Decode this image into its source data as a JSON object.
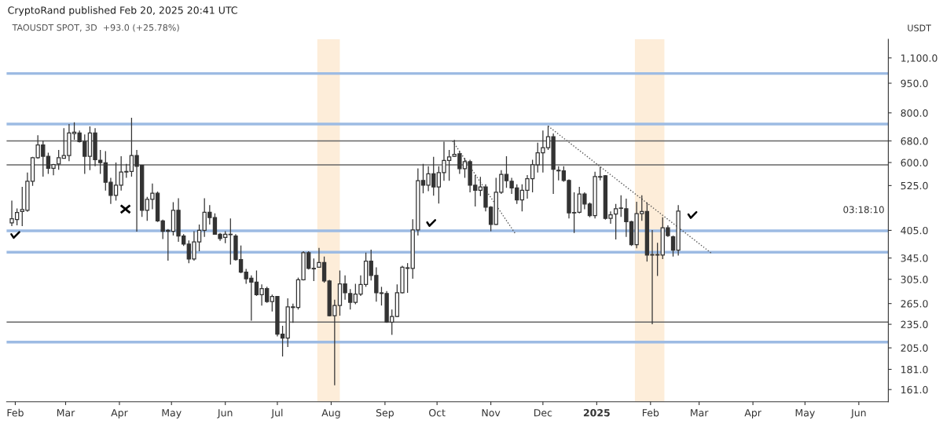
{
  "chart_data": {
    "type": "candlestick",
    "title": "CryptoRand published Feb 20, 2025 20:41 UTC",
    "subtitle": "TAOUSDT SPOT, 3D  +93.0 (+25.78%)",
    "ylabel": "USDT",
    "annotations": [
      "03:18:10"
    ],
    "color": "#333333",
    "log": true,
    "grid": false,
    "x": [
      "2024-01-30",
      "2024-02-02",
      "2024-02-05",
      "2024-02-08",
      "2024-02-11",
      "2024-02-14",
      "2024-02-17",
      "2024-02-20",
      "2024-02-23",
      "2024-02-26",
      "2024-02-29",
      "2024-03-03",
      "2024-03-06",
      "2024-03-09",
      "2024-03-12",
      "2024-03-15",
      "2024-03-18",
      "2024-03-21",
      "2024-03-24",
      "2024-03-27",
      "2024-03-30",
      "2024-04-02",
      "2024-04-05",
      "2024-04-08",
      "2024-04-11",
      "2024-04-14",
      "2024-04-17",
      "2024-04-20",
      "2024-04-23",
      "2024-04-26",
      "2024-04-29",
      "2024-05-02",
      "2024-05-05",
      "2024-05-08",
      "2024-05-11",
      "2024-05-14",
      "2024-05-17",
      "2024-05-20",
      "2024-05-23",
      "2024-05-26",
      "2024-05-29",
      "2024-06-01",
      "2024-06-04",
      "2024-06-07",
      "2024-06-10",
      "2024-06-13",
      "2024-06-16",
      "2024-06-19",
      "2024-06-22",
      "2024-06-25",
      "2024-06-28",
      "2024-07-01",
      "2024-07-04",
      "2024-07-07",
      "2024-07-10",
      "2024-07-13",
      "2024-07-16",
      "2024-07-19",
      "2024-07-22",
      "2024-07-25",
      "2024-07-28",
      "2024-07-31",
      "2024-08-03",
      "2024-08-06",
      "2024-08-09",
      "2024-08-12",
      "2024-08-15",
      "2024-08-18",
      "2024-08-21",
      "2024-08-24",
      "2024-08-27",
      "2024-08-30",
      "2024-09-02",
      "2024-09-05",
      "2024-09-08",
      "2024-09-11",
      "2024-09-14",
      "2024-09-17",
      "2024-09-20",
      "2024-09-23",
      "2024-09-26",
      "2024-09-29",
      "2024-10-02",
      "2024-10-05",
      "2024-10-08",
      "2024-10-11",
      "2024-10-14",
      "2024-10-17",
      "2024-10-20",
      "2024-10-23",
      "2024-10-26",
      "2024-10-29",
      "2024-11-01",
      "2024-11-04",
      "2024-11-07",
      "2024-11-10",
      "2024-11-13",
      "2024-11-16",
      "2024-11-19",
      "2024-11-22",
      "2024-11-25",
      "2024-11-28",
      "2024-12-01",
      "2024-12-04",
      "2024-12-07",
      "2024-12-10",
      "2024-12-13",
      "2024-12-16",
      "2024-12-19",
      "2024-12-22",
      "2024-12-25",
      "2024-12-28",
      "2024-12-31",
      "2025-01-03",
      "2025-01-06",
      "2025-01-09",
      "2025-01-12",
      "2025-01-15",
      "2025-01-18",
      "2025-01-21",
      "2025-01-24",
      "2025-01-27",
      "2025-01-30",
      "2025-02-02",
      "2025-02-05",
      "2025-02-08",
      "2025-02-11",
      "2025-02-14",
      "2025-02-17"
    ],
    "ohlc": [
      [
        423,
        481,
        415,
        433
      ],
      [
        431,
        460,
        417,
        449
      ],
      [
        452,
        521,
        415,
        457
      ],
      [
        455,
        566,
        451,
        538
      ],
      [
        538,
        620,
        524,
        617
      ],
      [
        617,
        703,
        613,
        664
      ],
      [
        664,
        681,
        553,
        622
      ],
      [
        622,
        635,
        562,
        580
      ],
      [
        580,
        595,
        557,
        593
      ],
      [
        595,
        645,
        575,
        617
      ],
      [
        615,
        732,
        615,
        625
      ],
      [
        625,
        750,
        605,
        712
      ],
      [
        710,
        758,
        685,
        715
      ],
      [
        712,
        722,
        674,
        677
      ],
      [
        677,
        706,
        562,
        622
      ],
      [
        622,
        740,
        574,
        712
      ],
      [
        712,
        732,
        587,
        610
      ],
      [
        608,
        645,
        562,
        600
      ],
      [
        599,
        641,
        510,
        535
      ],
      [
        535,
        549,
        472,
        496
      ],
      [
        496,
        600,
        481,
        526
      ],
      [
        526,
        622,
        510,
        568
      ],
      [
        568,
        595,
        549,
        570
      ],
      [
        570,
        778,
        553,
        625
      ],
      [
        625,
        645,
        402,
        587
      ],
      [
        590,
        590,
        438,
        455
      ],
      [
        455,
        492,
        428,
        485
      ],
      [
        485,
        531,
        458,
        502
      ],
      [
        502,
        507,
        425,
        428
      ],
      [
        428,
        431,
        385,
        403
      ],
      [
        403,
        408,
        340,
        405
      ],
      [
        403,
        477,
        393,
        455
      ],
      [
        455,
        488,
        379,
        392
      ],
      [
        392,
        396,
        370,
        374
      ],
      [
        374,
        382,
        335,
        343
      ],
      [
        343,
        403,
        340,
        379
      ],
      [
        379,
        419,
        359,
        405
      ],
      [
        405,
        488,
        390,
        450
      ],
      [
        450,
        469,
        419,
        436
      ],
      [
        436,
        447,
        395,
        396
      ],
      [
        396,
        399,
        381,
        386
      ],
      [
        389,
        403,
        376,
        396
      ],
      [
        396,
        434,
        332,
        395
      ],
      [
        392,
        396,
        340,
        342
      ],
      [
        342,
        371,
        316,
        318
      ],
      [
        318,
        324,
        297,
        306
      ],
      [
        307,
        312,
        240,
        300
      ],
      [
        300,
        321,
        277,
        279
      ],
      [
        279,
        296,
        262,
        289
      ],
      [
        289,
        292,
        266,
        268
      ],
      [
        268,
        279,
        253,
        276
      ],
      [
        276,
        277,
        219,
        222
      ],
      [
        222,
        233,
        195,
        217
      ],
      [
        217,
        273,
        206,
        260
      ],
      [
        260,
        265,
        237,
        259
      ],
      [
        259,
        308,
        256,
        304
      ],
      [
        304,
        359,
        303,
        356
      ],
      [
        356,
        359,
        323,
        325
      ],
      [
        325,
        344,
        302,
        324
      ],
      [
        327,
        366,
        326,
        336
      ],
      [
        336,
        348,
        299,
        302
      ],
      [
        302,
        304,
        246,
        247
      ],
      [
        247,
        271,
        165,
        262
      ],
      [
        262,
        321,
        247,
        297
      ],
      [
        297,
        312,
        271,
        282
      ],
      [
        281,
        288,
        256,
        267
      ],
      [
        267,
        297,
        264,
        280
      ],
      [
        280,
        312,
        277,
        296
      ],
      [
        296,
        356,
        292,
        339
      ],
      [
        339,
        362,
        303,
        312
      ],
      [
        312,
        327,
        268,
        282
      ],
      [
        282,
        292,
        262,
        281
      ],
      [
        281,
        285,
        237,
        238
      ],
      [
        238,
        256,
        221,
        246
      ],
      [
        246,
        296,
        245,
        282
      ],
      [
        282,
        330,
        281,
        327
      ],
      [
        326,
        335,
        282,
        325
      ],
      [
        325,
        432,
        306,
        406
      ],
      [
        406,
        580,
        393,
        540
      ],
      [
        541,
        595,
        502,
        526
      ],
      [
        526,
        587,
        508,
        562
      ],
      [
        562,
        620,
        495,
        521
      ],
      [
        521,
        587,
        473,
        566
      ],
      [
        566,
        677,
        540,
        607
      ],
      [
        607,
        645,
        540,
        620
      ],
      [
        622,
        684,
        620,
        629
      ],
      [
        631,
        641,
        562,
        579
      ],
      [
        579,
        615,
        549,
        603
      ],
      [
        603,
        610,
        505,
        526
      ],
      [
        526,
        558,
        465,
        511
      ],
      [
        511,
        552,
        494,
        521
      ],
      [
        521,
        529,
        452,
        463
      ],
      [
        463,
        466,
        403,
        419
      ],
      [
        419,
        549,
        418,
        505
      ],
      [
        505,
        574,
        500,
        560
      ],
      [
        560,
        622,
        518,
        540
      ],
      [
        538,
        549,
        500,
        518
      ],
      [
        518,
        529,
        472,
        483
      ],
      [
        483,
        529,
        452,
        511
      ],
      [
        511,
        558,
        487,
        546
      ],
      [
        546,
        610,
        505,
        592
      ],
      [
        592,
        673,
        566,
        635
      ],
      [
        635,
        722,
        566,
        654
      ],
      [
        654,
        742,
        645,
        697
      ],
      [
        697,
        710,
        500,
        577
      ],
      [
        574,
        587,
        541,
        572
      ],
      [
        572,
        587,
        537,
        541
      ],
      [
        541,
        544,
        434,
        448
      ],
      [
        449,
        505,
        399,
        448
      ],
      [
        450,
        521,
        447,
        500
      ],
      [
        500,
        505,
        458,
        472
      ],
      [
        472,
        476,
        437,
        441
      ],
      [
        441,
        569,
        434,
        553
      ],
      [
        553,
        585,
        541,
        551
      ],
      [
        556,
        558,
        431,
        434
      ],
      [
        434,
        452,
        421,
        443
      ],
      [
        445,
        472,
        384,
        459
      ],
      [
        461,
        496,
        438,
        460
      ],
      [
        459,
        487,
        390,
        426
      ],
      [
        426,
        428,
        370,
        373
      ],
      [
        373,
        478,
        365,
        446
      ],
      [
        446,
        496,
        428,
        452
      ],
      [
        452,
        476,
        338,
        351
      ],
      [
        351,
        406,
        235,
        352
      ],
      [
        352,
        377,
        311,
        351
      ],
      [
        351,
        437,
        343,
        411
      ],
      [
        411,
        417,
        390,
        393
      ],
      [
        390,
        393,
        348,
        361
      ],
      [
        361,
        469,
        350,
        453
      ]
    ],
    "series": [
      {
        "type": "line",
        "x": [
          "2024-10-10",
          "2024-11-15"
        ],
        "values": [
          679,
          398
        ],
        "color": "#555555"
      },
      {
        "type": "line",
        "x": [
          "2024-12-04",
          "2025-03-08"
        ],
        "values": [
          741,
          355
        ],
        "color": "#555555"
      }
    ],
    "line_style": "dotted",
    "ref_lines": [
      {
        "axis": "y",
        "value": 1005,
        "color": "#9dbbe3"
      },
      {
        "axis": "y",
        "value": 750,
        "color": "#9dbbe3"
      },
      {
        "axis": "y",
        "value": 680,
        "color": "#666666"
      },
      {
        "axis": "y",
        "value": 592,
        "color": "#666666"
      },
      {
        "axis": "y",
        "value": 404,
        "color": "#9dbbe3"
      },
      {
        "axis": "y",
        "value": 357,
        "color": "#9dbbe3"
      },
      {
        "axis": "y",
        "value": 238,
        "color": "#666666"
      },
      {
        "axis": "y",
        "value": 212,
        "color": "#9dbbe3"
      }
    ],
    "bands": [
      {
        "axis": "x",
        "from": "2024-07-24",
        "to": "2024-08-06",
        "color": "#fde9cf"
      },
      {
        "axis": "x",
        "from": "2025-01-23",
        "to": "2025-02-09",
        "color": "#fde9cf"
      }
    ],
    "xlim": [
      "2024-01-27",
      "2025-06-18"
    ],
    "xticks": [
      {
        "value": "2024-02-01",
        "label": "Feb"
      },
      {
        "value": "2024-03-01",
        "label": "Mar"
      },
      {
        "value": "2024-04-01",
        "label": "Apr"
      },
      {
        "value": "2024-05-01",
        "label": "May"
      },
      {
        "value": "2024-06-01",
        "label": "Jun"
      },
      {
        "value": "2024-07-01",
        "label": "Jul"
      },
      {
        "value": "2024-08-01",
        "label": "Aug"
      },
      {
        "value": "2024-09-01",
        "label": "Sep"
      },
      {
        "value": "2024-10-01",
        "label": "Oct"
      },
      {
        "value": "2024-11-01",
        "label": "Nov"
      },
      {
        "value": "2024-12-01",
        "label": "Dec"
      },
      {
        "value": "2025-01-01",
        "label": "2025"
      },
      {
        "value": "2025-02-01",
        "label": "Feb"
      },
      {
        "value": "2025-03-01",
        "label": "Mar"
      },
      {
        "value": "2025-04-01",
        "label": "Apr"
      },
      {
        "value": "2025-05-01",
        "label": "May"
      },
      {
        "value": "2025-06-01",
        "label": "Jun"
      }
    ],
    "ylim": [
      150,
      1225
    ],
    "yticks": [
      {
        "value": 161,
        "label": "161.0"
      },
      {
        "value": 181,
        "label": "181.0"
      },
      {
        "value": 205,
        "label": "205.0"
      },
      {
        "value": 235,
        "label": "235.0"
      },
      {
        "value": 265,
        "label": "265.0"
      },
      {
        "value": 305,
        "label": "305.0"
      },
      {
        "value": 345,
        "label": "345.0"
      },
      {
        "value": 405,
        "label": "405.0"
      },
      {
        "value": 525,
        "label": "525.0"
      },
      {
        "value": 600,
        "label": "600.0"
      },
      {
        "value": 680,
        "label": "680.0"
      },
      {
        "value": 800,
        "label": "800.0"
      },
      {
        "value": 950,
        "label": "950.0"
      },
      {
        "value": 1100,
        "label": "1,100.0"
      }
    ]
  }
}
